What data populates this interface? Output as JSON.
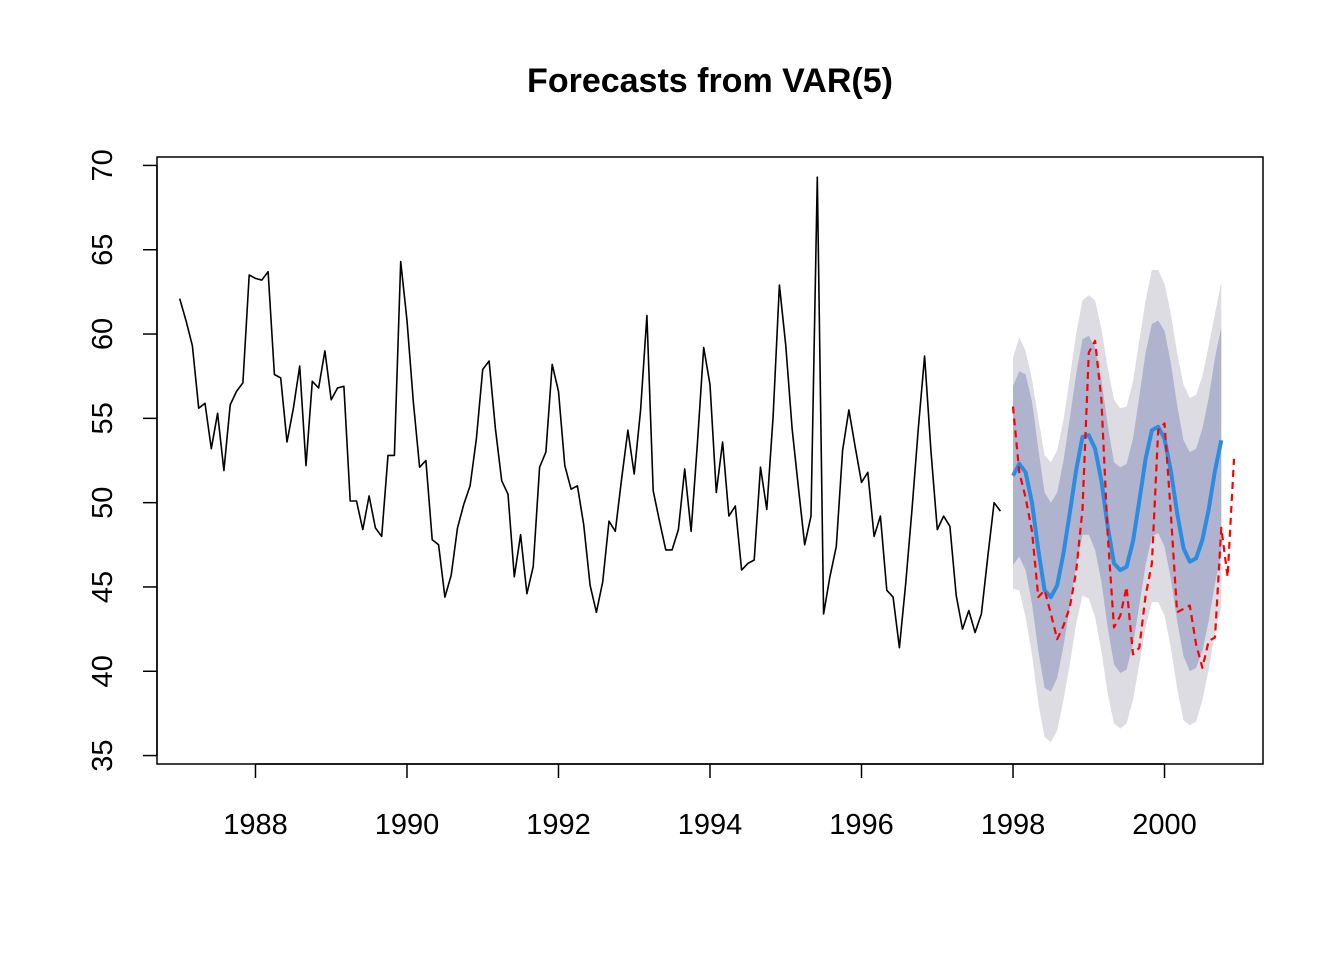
{
  "chart_data": {
    "type": "line",
    "title": "Forecasts from VAR(5)",
    "xlabel": "",
    "ylabel": "",
    "xlim": [
      1986.7,
      2001.3
    ],
    "ylim": [
      34.5,
      70.5
    ],
    "x_ticks": [
      1988,
      1990,
      1992,
      1994,
      1996,
      1998,
      2000
    ],
    "y_ticks": [
      35,
      40,
      45,
      50,
      55,
      60,
      65,
      70
    ],
    "grid": false,
    "colors": {
      "history": "#000000",
      "forecast_mean": "#2b8ce0",
      "actual_test": "#ff0000",
      "band_80": "#b0b3ce",
      "band_95": "#dcdce2"
    },
    "history": {
      "start": 1987.0,
      "frequency": 12,
      "values": [
        62.1,
        60.8,
        59.3,
        55.6,
        55.9,
        53.2,
        55.3,
        51.9,
        55.8,
        56.6,
        57.1,
        63.5,
        63.3,
        63.2,
        63.7,
        57.6,
        57.4,
        53.6,
        55.6,
        58.1,
        52.2,
        57.2,
        56.8,
        59.0,
        56.1,
        56.8,
        56.9,
        50.1,
        50.1,
        48.4,
        50.4,
        48.5,
        48.0,
        52.8,
        52.8,
        64.3,
        60.8,
        56.0,
        52.1,
        52.5,
        47.8,
        47.5,
        44.4,
        45.7,
        48.5,
        49.9,
        51.0,
        53.8,
        57.9,
        58.4,
        54.4,
        51.3,
        50.5,
        45.6,
        48.1,
        44.6,
        46.2,
        52.1,
        53.0,
        58.2,
        56.6,
        52.2,
        50.8,
        51.0,
        48.7,
        45.1,
        43.5,
        45.3,
        48.9,
        48.3,
        51.4,
        54.3,
        51.7,
        55.5,
        61.1,
        50.7,
        48.9,
        47.2,
        47.2,
        48.4,
        52.0,
        48.3,
        53.5,
        59.2,
        57.0,
        50.6,
        53.6,
        49.2,
        49.8,
        46.0,
        46.4,
        46.6,
        52.1,
        49.6,
        55.1,
        62.9,
        59.3,
        54.4,
        50.9,
        47.5,
        49.2,
        69.3,
        43.4,
        45.6,
        47.4,
        53.1,
        55.5,
        53.3,
        51.2,
        51.8,
        48.0,
        49.2,
        44.8,
        44.4,
        41.4,
        45.2,
        49.6,
        54.4,
        58.7,
        53.1,
        48.4,
        49.2,
        48.6,
        44.5,
        42.5,
        43.6,
        42.3,
        43.4,
        46.8,
        50.0,
        49.5
      ]
    },
    "forecast": {
      "start": 1998.0,
      "frequency": 12,
      "mean": [
        51.6,
        52.3,
        51.8,
        50.0,
        47.2,
        44.8,
        44.4,
        45.1,
        47.0,
        49.4,
        51.9,
        53.9,
        54.0,
        53.2,
        51.3,
        48.6,
        46.4,
        46.0,
        46.2,
        47.7,
        50.1,
        52.6,
        54.3,
        54.5,
        53.8,
        51.9,
        49.4,
        47.3,
        46.5,
        46.7,
        47.8,
        49.6,
        51.9,
        53.7
      ],
      "lo80": [
        46.3,
        46.8,
        46.0,
        44.0,
        41.2,
        39.0,
        38.8,
        39.6,
        41.5,
        43.8,
        46.2,
        48.1,
        48.1,
        47.2,
        45.3,
        42.6,
        40.4,
        39.9,
        40.1,
        41.6,
        43.9,
        46.3,
        48.0,
        48.2,
        47.4,
        45.5,
        43.0,
        40.9,
        40.0,
        40.2,
        41.2,
        43.0,
        45.2,
        47.0
      ],
      "hi80": [
        56.9,
        57.8,
        57.6,
        56.0,
        53.2,
        50.6,
        50.0,
        50.6,
        52.5,
        55.0,
        57.6,
        59.7,
        59.9,
        59.2,
        57.3,
        54.6,
        52.4,
        52.1,
        52.3,
        53.8,
        56.3,
        58.9,
        60.6,
        60.8,
        60.2,
        58.3,
        55.8,
        53.7,
        53.0,
        53.2,
        54.4,
        56.2,
        58.6,
        60.4
      ],
      "lo95": [
        44.9,
        44.8,
        43.2,
        41.0,
        38.1,
        36.1,
        35.8,
        36.5,
        38.3,
        40.4,
        42.8,
        44.5,
        44.3,
        43.2,
        41.2,
        38.7,
        36.9,
        36.6,
        36.9,
        38.3,
        40.4,
        42.6,
        44.1,
        44.1,
        43.3,
        41.4,
        39.0,
        37.1,
        36.8,
        37.0,
        38.3,
        40.1,
        42.3,
        43.8
      ],
      "hi95": [
        58.6,
        59.8,
        59.0,
        57.3,
        55.0,
        52.8,
        52.4,
        53.1,
        54.9,
        57.4,
        60.0,
        62.0,
        62.3,
        62.0,
        60.3,
        58.0,
        56.1,
        55.6,
        55.7,
        57.2,
        59.6,
        62.0,
        63.8,
        63.8,
        63.0,
        61.2,
        58.9,
        57.0,
        56.2,
        56.4,
        57.5,
        59.3,
        61.2,
        63.1
      ]
    },
    "actual_test": {
      "start": 1998.0,
      "frequency": 12,
      "values": [
        55.7,
        51.8,
        50.3,
        48.3,
        44.4,
        44.8,
        43.4,
        41.9,
        42.7,
        43.8,
        45.9,
        49.6,
        58.9,
        59.6,
        56.1,
        48.1,
        42.6,
        43.3,
        45.0,
        41.0,
        41.4,
        44.5,
        46.4,
        54.3,
        54.7,
        49.4,
        43.5,
        43.7,
        43.9,
        41.6,
        40.2,
        41.8,
        42.0,
        48.5,
        45.6,
        52.6
      ]
    }
  }
}
